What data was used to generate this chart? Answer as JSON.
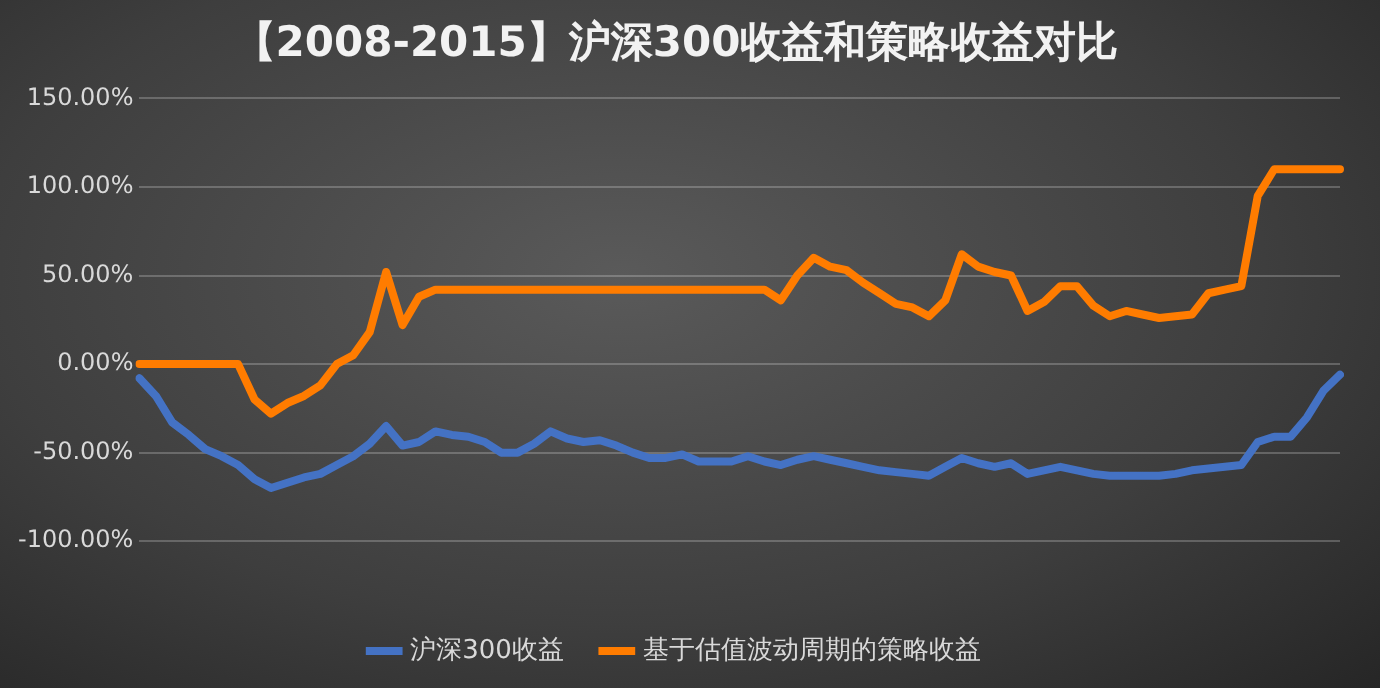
{
  "chart_data": {
    "type": "line",
    "title": "【2008-2015】沪深300收益和策略收益对比",
    "categories": [
      null,
      null,
      null,
      null,
      null,
      null,
      null,
      null,
      null,
      null,
      null,
      null,
      null,
      null,
      null,
      null,
      null,
      null,
      null,
      null,
      null,
      null,
      null,
      null,
      null,
      null,
      null,
      null,
      null,
      null,
      null,
      null,
      null,
      null,
      null,
      null,
      null,
      null,
      null,
      null,
      null,
      null,
      null,
      null,
      null,
      null,
      null,
      null,
      null,
      null,
      null,
      null,
      null,
      null,
      null,
      null,
      null,
      null,
      null,
      null,
      null,
      null,
      null,
      null,
      null,
      null,
      null,
      null,
      null,
      null,
      null,
      null,
      null,
      null
    ],
    "series": [
      {
        "name": "沪深300收益",
        "color": "#4472c4",
        "values": [
          -8,
          -18,
          -33,
          -40,
          -48,
          -52,
          -57,
          -65,
          -70,
          -67,
          -64,
          -62,
          -57,
          -52,
          -45,
          -35,
          -46,
          -44,
          -38,
          -40,
          -41,
          -44,
          -50,
          -50,
          -45,
          -38,
          -42,
          -44,
          -43,
          -46,
          -50,
          -53,
          -53,
          -51,
          -55,
          -55,
          -55,
          -52,
          -55,
          -57,
          -54,
          -52,
          -54,
          -56,
          -58,
          -60,
          -61,
          -62,
          -63,
          -58,
          -53,
          -56,
          -58,
          -56,
          -62,
          -60,
          -58,
          -60,
          -62,
          -63,
          -63,
          -63,
          -63,
          -62,
          -60,
          -59,
          -58,
          -57,
          -44,
          -41,
          -41,
          -30,
          -15,
          -6
        ]
      },
      {
        "name": "基于估值波动周期的策略收益",
        "color": "#ff7c00",
        "values": [
          0,
          0,
          0,
          0,
          0,
          0,
          0,
          -20,
          -28,
          -22,
          -18,
          -12,
          0,
          5,
          18,
          52,
          22,
          38,
          42,
          42,
          42,
          42,
          42,
          42,
          42,
          42,
          42,
          42,
          42,
          42,
          42,
          42,
          42,
          42,
          42,
          42,
          42,
          42,
          42,
          36,
          50,
          60,
          55,
          53,
          46,
          40,
          34,
          32,
          27,
          36,
          62,
          55,
          52,
          50,
          30,
          35,
          44,
          44,
          33,
          27,
          30,
          28,
          26,
          27,
          28,
          40,
          42,
          44,
          95,
          110,
          110,
          110,
          110,
          110
        ]
      }
    ],
    "ylim": [
      -100,
      150
    ],
    "yticks": [
      {
        "value": -100,
        "label": "-100.00%"
      },
      {
        "value": -50,
        "label": "-50.00%"
      },
      {
        "value": 0,
        "label": "0.00%"
      },
      {
        "value": 50,
        "label": "50.00%"
      },
      {
        "value": 100,
        "label": "100.00%"
      },
      {
        "value": 150,
        "label": "150.00%"
      }
    ],
    "grid": "y",
    "legend": "bottom",
    "marker": "none",
    "line_style": "solid"
  }
}
